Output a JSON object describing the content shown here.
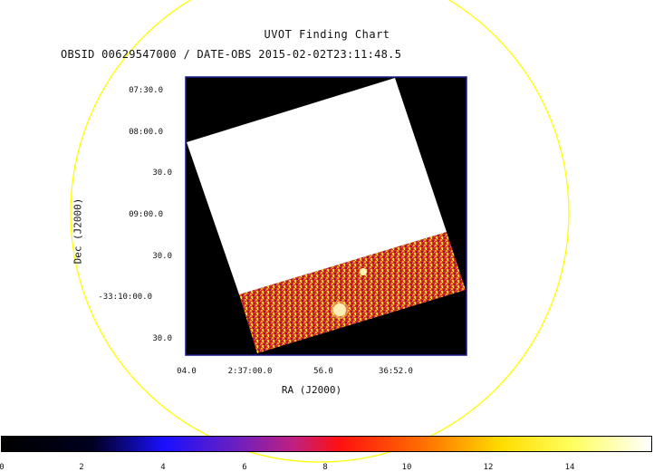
{
  "header": {
    "title": "UVOT Finding Chart",
    "subtitle": "OBSID 00629547000 / DATE-OBS 2015-02-02T23:11:48.5"
  },
  "axes": {
    "x_title": "RA (J2000)",
    "y_title": "Dec (J2000)",
    "x_ticks": [
      "04.0",
      "2:37:00.0",
      "56.0",
      "36:52.0"
    ],
    "y_ticks": [
      "07:30.0",
      "08:00.0",
      "30.0",
      "09:00.0",
      "30.0",
      "-33:10:00.0",
      "30.0"
    ]
  },
  "colorbar": {
    "ticks": [
      "0",
      "2",
      "4",
      "6",
      "8",
      "10",
      "12",
      "14"
    ],
    "min": 0,
    "max": 16
  },
  "colors": {
    "circle": "#ffff00",
    "frame": "#1a1a8c",
    "background": "#000000",
    "saturated": "#ffffff"
  }
}
